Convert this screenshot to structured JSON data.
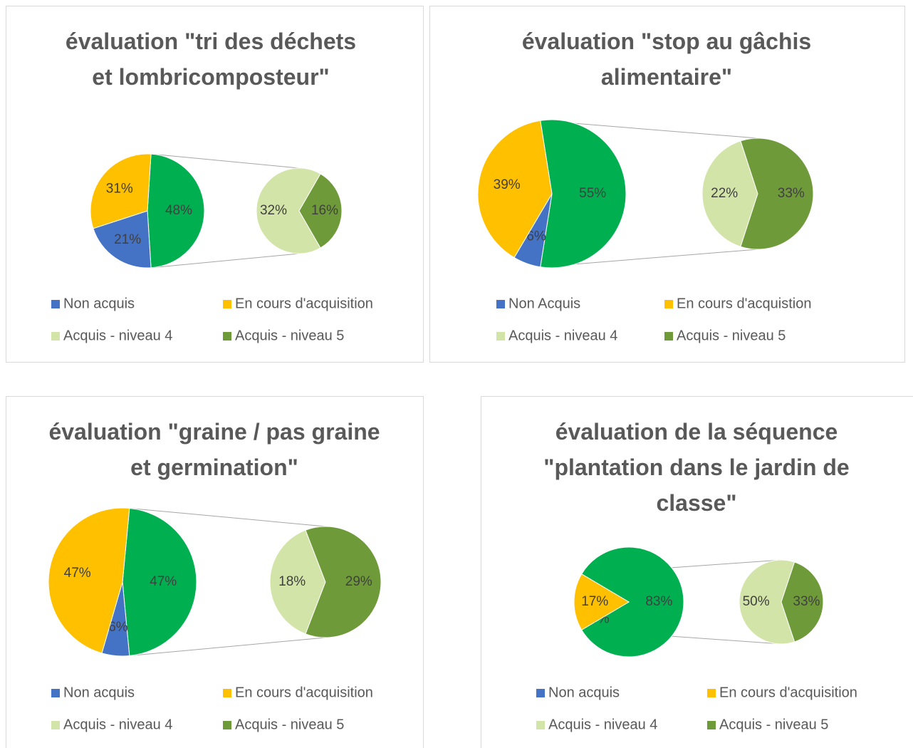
{
  "chart_data": [
    {
      "type": "pie-of-pie",
      "title": "évaluation \"tri des déchets et lombricomposteur\"",
      "categories": [
        "Non acquis",
        "En cours d'acquisition",
        "Acquis - niveau 4",
        "Acquis - niveau 5"
      ],
      "values": [
        21,
        31,
        32,
        16
      ],
      "value_labels": [
        "21%",
        "31%",
        "32%",
        "16%"
      ],
      "colors": [
        "#4472c4",
        "#ffc000",
        "#d3e4a8",
        "#6f9a3a"
      ],
      "combined": {
        "value": 48,
        "label": "48%",
        "color": "#00b050"
      }
    },
    {
      "type": "pie-of-pie",
      "title": "évaluation \"stop au gâchis alimentaire\"",
      "categories": [
        "Non Acquis",
        "En cours d'acquistion",
        "Acquis - niveau 4",
        "Acquis - niveau 5"
      ],
      "values": [
        6,
        39,
        22,
        33
      ],
      "value_labels": [
        "6%",
        "39%",
        "22%",
        "33%"
      ],
      "colors": [
        "#4472c4",
        "#ffc000",
        "#d3e4a8",
        "#6f9a3a"
      ],
      "combined": {
        "value": 55,
        "label": "55%",
        "color": "#00b050"
      }
    },
    {
      "type": "pie-of-pie",
      "title": "évaluation \"graine / pas graine et germination\"",
      "categories": [
        "Non acquis",
        "En cours d'acquisition",
        "Acquis - niveau 4",
        "Acquis - niveau 5"
      ],
      "values": [
        6,
        47,
        18,
        29
      ],
      "value_labels": [
        "6%",
        "47%",
        "18%",
        "29%"
      ],
      "colors": [
        "#4472c4",
        "#ffc000",
        "#d3e4a8",
        "#6f9a3a"
      ],
      "combined": {
        "value": 47,
        "label": "47%",
        "color": "#00b050"
      }
    },
    {
      "type": "pie-of-pie",
      "title": "évaluation de la séquence \"plantation dans le jardin de classe\"",
      "categories": [
        "Non acquis",
        "En cours d'acquisition",
        "Acquis - niveau 4",
        "Acquis - niveau 5"
      ],
      "values": [
        0,
        17,
        50,
        33
      ],
      "value_labels": [
        "0%",
        "17%",
        "50%",
        "33%"
      ],
      "colors": [
        "#4472c4",
        "#ffc000",
        "#d3e4a8",
        "#6f9a3a"
      ],
      "combined": {
        "value": 83,
        "label": "83%",
        "color": "#00b050"
      }
    }
  ]
}
